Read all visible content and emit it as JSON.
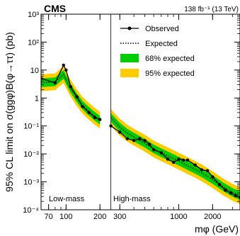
{
  "experiment_label": "CMS",
  "luminosity_label": "138 fb⁻¹ (13 TeV)",
  "chart_data": {
    "type": "line",
    "xlabel": "mφ (GeV)",
    "ylabel": "95% CL limit on σ(ggφ)B(φ→ττ) (pb)",
    "x_scale": "log",
    "y_scale": "log",
    "xlim": [
      60,
      3500
    ],
    "ylim": [
      0.0001,
      1000
    ],
    "x_ticks": [
      {
        "value": 70,
        "label": "70"
      },
      {
        "value": 100,
        "label": "100"
      },
      {
        "value": 200,
        "label": "200"
      },
      {
        "value": 300,
        "label": "300"
      },
      {
        "value": 1000,
        "label": "1000"
      },
      {
        "value": 2000,
        "label": "2000"
      }
    ],
    "y_ticks": [
      {
        "value": 0.0001,
        "label": "10⁻⁴"
      },
      {
        "value": 0.001,
        "label": "10⁻³"
      },
      {
        "value": 0.01,
        "label": "10⁻²"
      },
      {
        "value": 0.1,
        "label": "10⁻¹"
      },
      {
        "value": 1,
        "label": "1"
      },
      {
        "value": 10,
        "label": "10"
      },
      {
        "value": 100,
        "label": "10²"
      },
      {
        "value": 1000,
        "label": "10³"
      }
    ],
    "divider_x": 250,
    "regions": [
      {
        "label": "Low-mass"
      },
      {
        "label": "High-mass"
      }
    ],
    "legend": {
      "position": "top-right",
      "entries": [
        {
          "label": "Observed",
          "kind": "observed"
        },
        {
          "label": "Expected",
          "kind": "expected"
        },
        {
          "label": "68% expected",
          "kind": "band68"
        },
        {
          "label": "95% expected",
          "kind": "band95"
        }
      ]
    },
    "colors": {
      "observed": "#000000",
      "expected": "#000000",
      "band68": "#00cc00",
      "band95": "#ffcc00"
    },
    "series": [
      {
        "name": "Observed",
        "segments": [
          {
            "x": [
              60,
              80,
              95,
              100,
              110,
              125,
              140,
              160,
              180,
              200
            ],
            "y": [
              5,
              3.5,
              15,
              10,
              2.5,
              1.1,
              0.5,
              0.3,
              0.2,
              0.17
            ]
          },
          {
            "x": [
              250,
              300,
              350,
              400,
              450,
              500,
              550,
              600,
              700,
              800,
              900,
              1000,
              1100,
              1200,
              1400,
              1600,
              1800,
              2000,
              2300,
              2600,
              2900,
              3200,
              3500
            ],
            "y": [
              0.1,
              0.06,
              0.035,
              0.03,
              0.035,
              0.03,
              0.022,
              0.014,
              0.011,
              0.0065,
              0.005,
              0.0065,
              0.006,
              0.006,
              0.004,
              0.0027,
              0.0025,
              0.0015,
              0.0008,
              0.0005,
              0.0004,
              0.00032,
              0.00028
            ]
          }
        ]
      },
      {
        "name": "Expected",
        "segments": [
          {
            "x": [
              60,
              80,
              95,
              100,
              110,
              125,
              140,
              160,
              180,
              200
            ],
            "y": [
              3.5,
              3.8,
              7,
              4.5,
              2.2,
              1.0,
              0.55,
              0.33,
              0.22,
              0.16
            ]
          },
          {
            "x": [
              250,
              300,
              350,
              400,
              500,
              600,
              700,
              800,
              1000,
              1200,
              1400,
              1600,
              2000,
              2500,
              3000,
              3500
            ],
            "y": [
              0.2,
              0.09,
              0.055,
              0.04,
              0.024,
              0.015,
              0.011,
              0.0085,
              0.0055,
              0.0038,
              0.0028,
              0.0021,
              0.0012,
              0.00065,
              0.00042,
              0.00032
            ]
          }
        ]
      }
    ],
    "bands": {
      "band68_factor": [
        0.7,
        1.43
      ],
      "band95_factor": [
        0.5,
        2.0
      ]
    }
  }
}
